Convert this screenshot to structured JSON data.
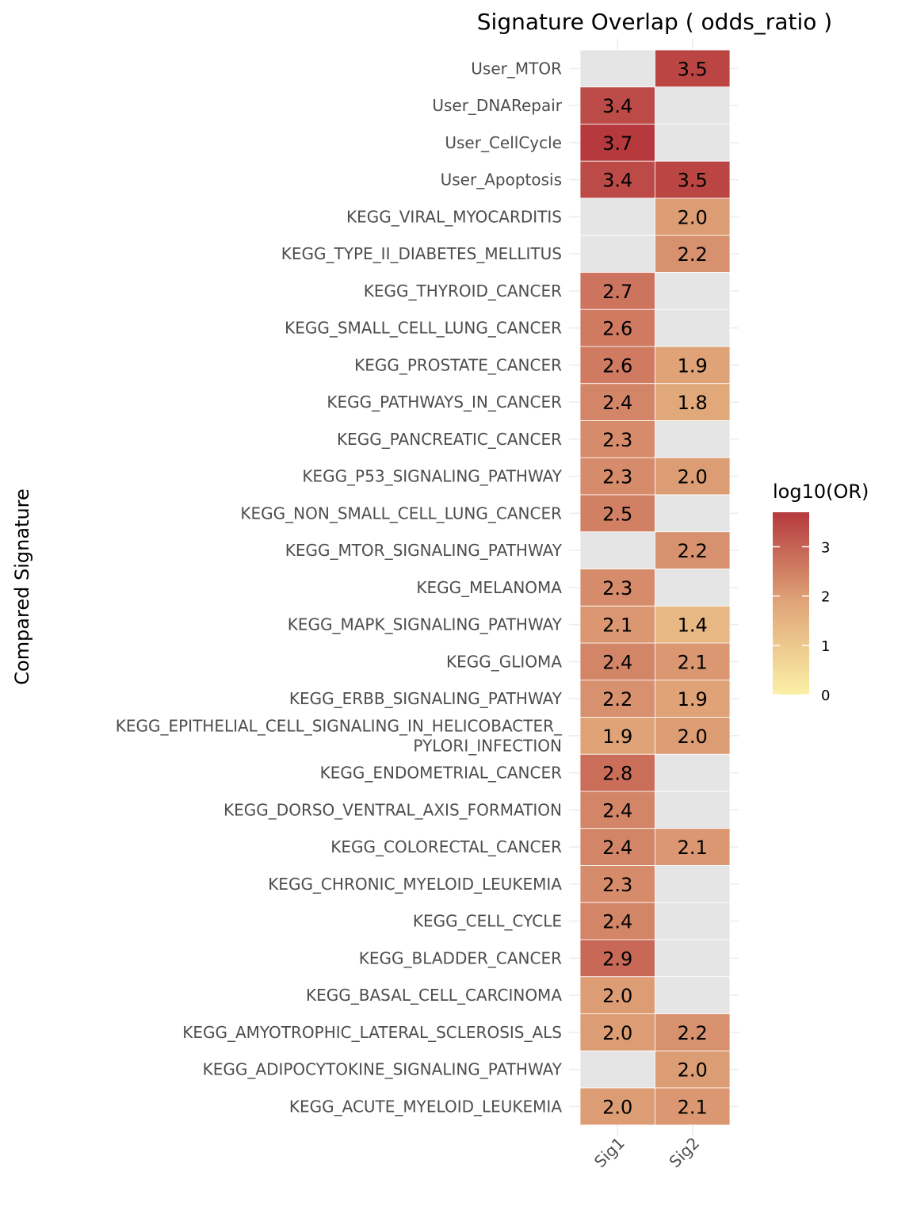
{
  "chart_data": {
    "type": "heatmap",
    "title": "Signature Overlap ( odds_ratio )",
    "xlabel": "",
    "ylabel": "Compared Signature",
    "columns": [
      "Sig1",
      "Sig2"
    ],
    "rows": [
      "User_MTOR",
      "User_DNARepair",
      "User_CellCycle",
      "User_Apoptosis",
      "KEGG_VIRAL_MYOCARDITIS",
      "KEGG_TYPE_II_DIABETES_MELLITUS",
      "KEGG_THYROID_CANCER",
      "KEGG_SMALL_CELL_LUNG_CANCER",
      "KEGG_PROSTATE_CANCER",
      "KEGG_PATHWAYS_IN_CANCER",
      "KEGG_PANCREATIC_CANCER",
      "KEGG_P53_SIGNALING_PATHWAY",
      "KEGG_NON_SMALL_CELL_LUNG_CANCER",
      "KEGG_MTOR_SIGNALING_PATHWAY",
      "KEGG_MELANOMA",
      "KEGG_MAPK_SIGNALING_PATHWAY",
      "KEGG_GLIOMA",
      "KEGG_ERBB_SIGNALING_PATHWAY",
      "KEGG_EPITHELIAL_CELL_SIGNALING_IN_HELICOBACTER_\nPYLORI_INFECTION",
      "KEGG_ENDOMETRIAL_CANCER",
      "KEGG_DORSO_VENTRAL_AXIS_FORMATION",
      "KEGG_COLORECTAL_CANCER",
      "KEGG_CHRONIC_MYELOID_LEUKEMIA",
      "KEGG_CELL_CYCLE",
      "KEGG_BLADDER_CANCER",
      "KEGG_BASAL_CELL_CARCINOMA",
      "KEGG_AMYOTROPHIC_LATERAL_SCLEROSIS_ALS",
      "KEGG_ADIPOCYTOKINE_SIGNALING_PATHWAY",
      "KEGG_ACUTE_MYELOID_LEUKEMIA"
    ],
    "values": [
      [
        null,
        3.5
      ],
      [
        3.4,
        null
      ],
      [
        3.7,
        null
      ],
      [
        3.4,
        3.5
      ],
      [
        null,
        2.0
      ],
      [
        null,
        2.2
      ],
      [
        2.7,
        null
      ],
      [
        2.6,
        null
      ],
      [
        2.6,
        1.9
      ],
      [
        2.4,
        1.8
      ],
      [
        2.3,
        null
      ],
      [
        2.3,
        2.0
      ],
      [
        2.5,
        null
      ],
      [
        null,
        2.2
      ],
      [
        2.3,
        null
      ],
      [
        2.1,
        1.4
      ],
      [
        2.4,
        2.1
      ],
      [
        2.2,
        1.9
      ],
      [
        1.9,
        2.0
      ],
      [
        2.8,
        null
      ],
      [
        2.4,
        null
      ],
      [
        2.4,
        2.1
      ],
      [
        2.3,
        null
      ],
      [
        2.4,
        null
      ],
      [
        2.9,
        null
      ],
      [
        2.0,
        null
      ],
      [
        2.0,
        2.2
      ],
      [
        null,
        2.0
      ],
      [
        2.0,
        2.1
      ]
    ],
    "missing_color": "#e5e5e5",
    "legend": {
      "title": "log10(OR)",
      "placement": "right",
      "ticks": [
        0,
        1,
        2,
        3
      ],
      "range": [
        0,
        3.7
      ],
      "colors": [
        "#fbf0a6",
        "#e0a679",
        "#b5393d"
      ]
    }
  }
}
